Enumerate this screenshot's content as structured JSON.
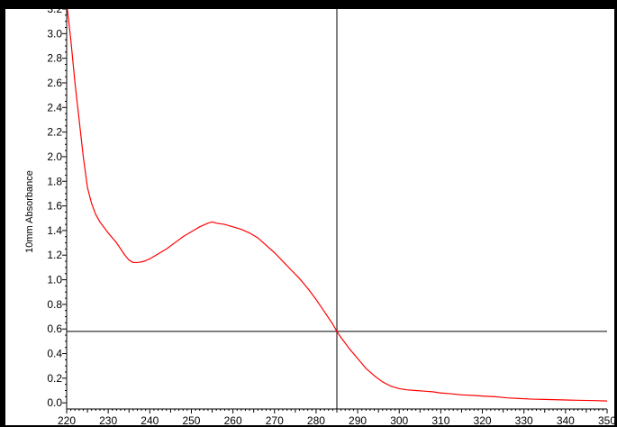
{
  "chart_data": {
    "type": "line",
    "title": "",
    "xlabel": "",
    "ylabel": "10mm Absorbance",
    "xlim": [
      220,
      350
    ],
    "ylim": [
      -0.05,
      3.2
    ],
    "x_ticks": [
      "220",
      "230",
      "240",
      "250",
      "260",
      "270",
      "280",
      "290",
      "300",
      "310",
      "320",
      "330",
      "340",
      "350"
    ],
    "y_ticks": [
      "0.0",
      "0.2",
      "0.4",
      "0.6",
      "0.8",
      "1.0",
      "1.2",
      "1.4",
      "1.6",
      "1.8",
      "2.0",
      "2.2",
      "2.4",
      "2.6",
      "2.8",
      "3.0",
      "3.2"
    ],
    "grid": false,
    "cursor": {
      "x": 285,
      "y": 0.58
    },
    "series": [
      {
        "color": "#ff0000",
        "x": [
          220,
          221,
          222,
          223,
          224,
          225,
          226,
          227,
          228,
          230,
          232,
          234,
          235,
          236,
          237,
          238,
          239,
          240,
          242,
          244,
          246,
          248,
          250,
          252,
          254,
          255,
          256,
          258,
          260,
          262,
          264,
          266,
          268,
          270,
          272,
          274,
          276,
          278,
          280,
          282,
          284,
          285,
          286,
          288,
          290,
          292,
          294,
          296,
          298,
          300,
          302,
          304,
          306,
          308,
          310,
          312,
          315,
          318,
          320,
          323,
          326,
          329,
          332,
          335,
          338,
          341,
          344,
          347,
          350
        ],
        "y": [
          3.25,
          2.95,
          2.6,
          2.3,
          2.0,
          1.75,
          1.62,
          1.53,
          1.47,
          1.38,
          1.3,
          1.2,
          1.16,
          1.14,
          1.14,
          1.145,
          1.155,
          1.17,
          1.21,
          1.25,
          1.3,
          1.35,
          1.39,
          1.43,
          1.46,
          1.47,
          1.46,
          1.45,
          1.43,
          1.41,
          1.38,
          1.34,
          1.28,
          1.22,
          1.15,
          1.08,
          1.01,
          0.93,
          0.84,
          0.74,
          0.64,
          0.58,
          0.53,
          0.44,
          0.36,
          0.28,
          0.22,
          0.17,
          0.135,
          0.115,
          0.105,
          0.1,
          0.095,
          0.09,
          0.08,
          0.075,
          0.065,
          0.06,
          0.055,
          0.05,
          0.04,
          0.035,
          0.03,
          0.028,
          0.025,
          0.022,
          0.02,
          0.018,
          0.015
        ]
      }
    ]
  }
}
